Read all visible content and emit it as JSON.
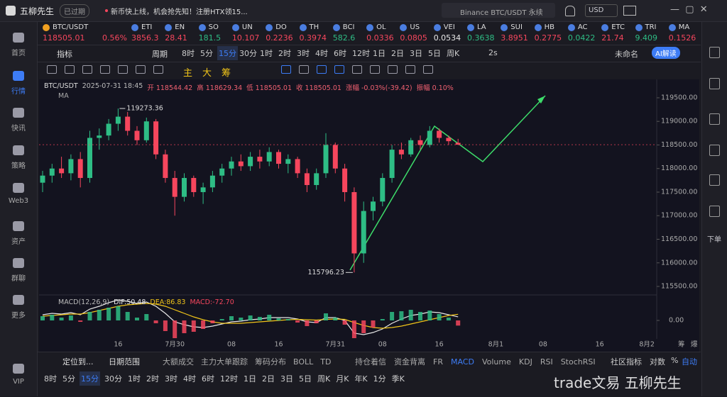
{
  "top_bar": {
    "app_name": "五柳先生",
    "status": "已过期",
    "news": "新币快上线，机会抢先知！注册HTX领15...",
    "search": "Binance BTC/USDT 永续",
    "currency": "USD"
  },
  "sidebar": [
    "首页",
    "行情",
    "快讯",
    "策略",
    "Web3",
    "资产",
    "群聊",
    "更多",
    "VIP"
  ],
  "sidebar_active": 1,
  "right_sidebar": {
    "label": "下单"
  },
  "ticker": [
    {
      "symbol": "BTC/USDT",
      "price": "118505.01",
      "change": "0.56%",
      "trend": "down"
    },
    {
      "symbol": "ETI",
      "price": "3856.3",
      "trend": "down"
    },
    {
      "symbol": "EN",
      "price": "28.41",
      "trend": "down"
    },
    {
      "symbol": "SO",
      "price": "181.5",
      "trend": "up"
    },
    {
      "symbol": "UN",
      "price": "10.107",
      "trend": "down"
    },
    {
      "symbol": "DO",
      "price": "0.2236",
      "trend": "down"
    },
    {
      "symbol": "TH",
      "price": "0.3974",
      "trend": "down"
    },
    {
      "symbol": "BCI",
      "price": "582.6",
      "trend": "up"
    },
    {
      "symbol": "OL",
      "price": "0.0336",
      "trend": "down"
    },
    {
      "symbol": "US",
      "price": "0.0805",
      "trend": "down"
    },
    {
      "symbol": "VEI",
      "price": "0.0534",
      "trend": "flat"
    },
    {
      "symbol": "LA",
      "price": "0.3638",
      "trend": "up"
    },
    {
      "symbol": "SUI",
      "price": "3.8951",
      "trend": "down"
    },
    {
      "symbol": "HB",
      "price": "0.2775",
      "trend": "down"
    },
    {
      "symbol": "AC",
      "price": "0.0422",
      "trend": "up"
    },
    {
      "symbol": "ETC",
      "price": "21.74",
      "trend": "down"
    },
    {
      "symbol": "TRI",
      "price": "9.409",
      "trend": "up"
    },
    {
      "symbol": "MA",
      "price": "0.1526",
      "trend": "down"
    }
  ],
  "toolbar": {
    "indicator": "指标",
    "period": "周期",
    "intervals": [
      "8时",
      "5分",
      "15分",
      "30分",
      "1时",
      "2时",
      "3时",
      "4时",
      "6时",
      "12时",
      "1日",
      "2日",
      "3日",
      "5日",
      "周K"
    ],
    "active": 2,
    "speed": "2s",
    "layout": "未命名",
    "ai": "AI解读"
  },
  "draw_tools": [
    "主",
    "大",
    "筹"
  ],
  "chart_data": [
    {
      "type": "candlestick",
      "title": "BTC/USDT",
      "info": [
        "2025-07-31 18:45",
        "开 118544.42",
        "高 118629.34",
        "低 118505.01",
        "收 118505.01",
        "涨幅 -0.03%(-39.42)",
        "振幅 0.10%"
      ],
      "ma_label": "MA",
      "categories": [
        null,
        null,
        null,
        null,
        null,
        null,
        null,
        null,
        "16",
        null,
        null,
        null,
        null,
        null,
        "7月30",
        null,
        null,
        null,
        null,
        null,
        "08",
        null,
        null,
        null,
        null,
        "16",
        null,
        null,
        null,
        null,
        null,
        "7月31",
        null,
        null,
        null,
        null,
        "08",
        null,
        null,
        null,
        null,
        null,
        "16",
        null,
        null,
        null,
        null,
        null,
        "8月1",
        null,
        null,
        null,
        null,
        "08",
        null,
        null,
        null,
        null,
        null,
        "16",
        null,
        null,
        null,
        null,
        "8月2",
        null
      ],
      "open": [
        117700,
        117850,
        118000,
        117900,
        118200,
        117800,
        118650,
        118700,
        118950,
        119100,
        118800,
        118600,
        119000,
        118300,
        117800,
        117400,
        117800,
        117500,
        117600,
        117850,
        118000,
        118150,
        118050,
        118250,
        118150,
        118350,
        118100,
        118200,
        117900,
        117650,
        117900,
        118500,
        118000,
        117500,
        116200,
        117100,
        117300,
        117800,
        118400,
        118300,
        118600,
        118500,
        118800,
        118650,
        118544.42,
        null,
        null,
        null,
        null,
        null,
        null,
        null,
        null,
        null,
        null,
        null,
        null,
        null,
        null,
        null,
        null,
        null,
        null,
        null,
        null,
        null
      ],
      "high": [
        117950,
        118100,
        118250,
        118300,
        118350,
        118800,
        118850,
        119050,
        119273.36,
        119200,
        118900,
        119080,
        119050,
        118400,
        117950,
        117900,
        117850,
        117700,
        117950,
        118100,
        118250,
        118300,
        118350,
        118400,
        118450,
        118400,
        118300,
        118250,
        118000,
        118000,
        118750,
        118550,
        118100,
        117600,
        117300,
        117400,
        117900,
        118500,
        118550,
        118650,
        118700,
        118900,
        118850,
        118700,
        118629.34,
        null,
        null,
        null,
        null,
        null,
        null,
        null,
        null,
        null,
        null,
        null,
        null,
        null,
        null,
        null,
        null,
        null,
        null,
        null,
        null,
        null
      ],
      "low": [
        117500,
        117700,
        117800,
        117750,
        117600,
        117700,
        118400,
        118600,
        118800,
        118700,
        118500,
        118550,
        118200,
        117700,
        117000,
        117300,
        117400,
        117250,
        117500,
        117700,
        117850,
        117950,
        117950,
        118000,
        118050,
        118000,
        117900,
        117800,
        117500,
        117550,
        117800,
        117900,
        117300,
        115796.23,
        116000,
        116900,
        117200,
        117700,
        118200,
        118250,
        118400,
        118450,
        118550,
        118500,
        118505.01,
        null,
        null,
        null,
        null,
        null,
        null,
        null,
        null,
        null,
        null,
        null,
        null,
        null,
        null,
        null,
        null,
        null,
        null,
        null,
        null,
        null
      ],
      "close": [
        117850,
        118000,
        117900,
        118200,
        117800,
        118650,
        118700,
        118950,
        119100,
        118800,
        118600,
        119000,
        118300,
        117800,
        117400,
        117800,
        117500,
        117600,
        117850,
        118000,
        118150,
        118050,
        118250,
        118150,
        118350,
        118100,
        118200,
        117900,
        117650,
        117900,
        118500,
        118000,
        117500,
        116200,
        117100,
        117300,
        117800,
        118400,
        118300,
        118600,
        118500,
        118800,
        118650,
        118580,
        118505.01,
        null,
        null,
        null,
        null,
        null,
        null,
        null,
        null,
        null,
        null,
        null,
        null,
        null,
        null,
        null,
        null,
        null,
        null,
        null,
        null,
        null
      ],
      "high_label": "119273.36",
      "low_label": "115796.23",
      "up_color": "#2ebd85",
      "down_color": "#f6465d",
      "ylim": [
        115335,
        119845
      ],
      "yticks": [
        {
          "value": 115500,
          "label": "115500.00"
        },
        {
          "value": 116000,
          "label": "116000.00"
        },
        {
          "value": 116500,
          "label": "116500.00"
        },
        {
          "value": 117000,
          "label": "117000.00"
        },
        {
          "value": 117500,
          "label": "117500.00"
        },
        {
          "value": 118000,
          "label": "118000.00"
        },
        {
          "value": 118500,
          "label": "118500.00"
        },
        {
          "value": 119000,
          "label": "119000.00"
        },
        {
          "value": 119500,
          "label": "119500.00"
        }
      ],
      "last_price_line": true,
      "grid": false
    },
    {
      "type": "macd",
      "title": "MACD(12,26,9)",
      "ylim": [
        -260,
        320
      ],
      "yticks": [
        {
          "value": 0,
          "label": "0.00"
        }
      ],
      "series": [
        {
          "name": "DIF:50.48",
          "color": "#e8e8e8",
          "kind": "line",
          "values": [
            80,
            100,
            90,
            110,
            80,
            160,
            200,
            250,
            290,
            270,
            240,
            260,
            200,
            100,
            -20,
            -60,
            -90,
            -100,
            -80,
            -50,
            -20,
            -10,
            10,
            20,
            40,
            40,
            40,
            20,
            -20,
            -30,
            40,
            40,
            0,
            -180,
            -200,
            -170,
            -120,
            -40,
            20,
            70,
            90,
            120,
            110,
            80,
            50.48,
            null,
            null,
            null,
            null,
            null,
            null,
            null,
            null,
            null,
            null,
            null,
            null,
            null,
            null,
            null,
            null,
            null,
            null,
            null,
            null,
            null
          ]
        },
        {
          "name": "DEA:86.83",
          "color": "#f0c419",
          "kind": "line",
          "values": [
            60,
            70,
            80,
            90,
            90,
            110,
            140,
            170,
            200,
            220,
            230,
            240,
            230,
            200,
            150,
            100,
            50,
            10,
            -20,
            -40,
            -40,
            -40,
            -30,
            -20,
            -10,
            0,
            10,
            15,
            10,
            5,
            15,
            20,
            15,
            -30,
            -70,
            -100,
            -110,
            -100,
            -80,
            -50,
            -20,
            10,
            40,
            70,
            86.83,
            null,
            null,
            null,
            null,
            null,
            null,
            null,
            null,
            null,
            null,
            null,
            null,
            null,
            null,
            null,
            null,
            null,
            null,
            null,
            null,
            null
          ]
        },
        {
          "name": "MACD:-72.70",
          "color": "#f6465d",
          "kind": "bar",
          "up_color": "#2ebd85",
          "down_color": "#f6465d",
          "values": [
            60,
            80,
            40,
            70,
            -20,
            120,
            150,
            180,
            200,
            120,
            40,
            90,
            -40,
            -150,
            -250,
            -180,
            -160,
            -120,
            -40,
            20,
            60,
            40,
            70,
            50,
            80,
            30,
            20,
            -30,
            -80,
            -40,
            100,
            40,
            -60,
            -250,
            -180,
            -100,
            20,
            120,
            130,
            150,
            120,
            140,
            90,
            40,
            -72.7,
            null,
            null,
            null,
            null,
            null,
            null,
            null,
            null,
            null,
            null,
            null,
            null,
            null,
            null,
            null,
            null,
            null,
            null,
            null,
            null,
            null
          ]
        }
      ]
    }
  ],
  "axis_corner": [
    "筹",
    "爆"
  ],
  "bottom_bar": {
    "locate": "定位到...",
    "date_range": "日期范围",
    "indicators": [
      "大额成交",
      "主力大单跟踪",
      "筹码分布",
      "BOLL",
      "TD"
    ],
    "indicators2": [
      "持仓着信",
      "资金背离",
      "FR",
      "MACD",
      "Volume",
      "KDJ",
      "RSI",
      "StochRSI"
    ],
    "active2": 3,
    "community": "社区指标",
    "log": "对数",
    "percent": "%",
    "auto": "自动",
    "intervals": [
      "8时",
      "5分",
      "15分",
      "30分",
      "1时",
      "2时",
      "3时",
      "4时",
      "6时",
      "12时",
      "1日",
      "2日",
      "3日",
      "5日",
      "周K",
      "月K",
      "年K",
      "1分",
      "季K"
    ],
    "active": 2
  },
  "watermark": "trade文易 五柳先生"
}
